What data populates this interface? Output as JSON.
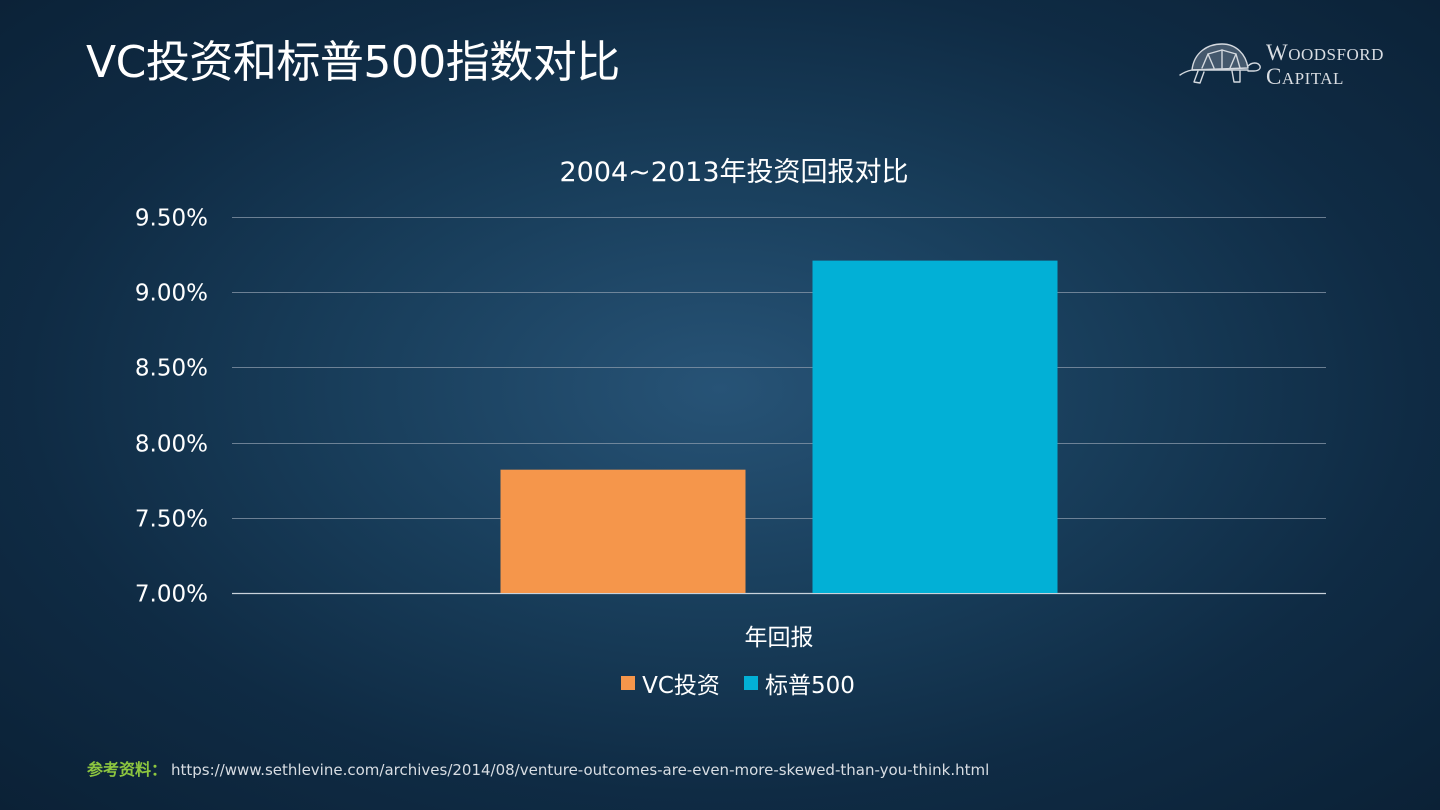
{
  "slide": {
    "title": "VC投资和标普500指数对比",
    "logo": {
      "line1_first": "W",
      "line1_rest": "OODSFORD",
      "line2_first": "C",
      "line2_rest": "APITAL",
      "icon": "tortoise-icon"
    },
    "reference": {
      "label": "参考资料：",
      "url": "https://www.sethlevine.com/archives/2014/08/venture-outcomes-are-even-more-skewed-than-you-think.html"
    }
  },
  "chart_data": {
    "type": "bar",
    "title": "2004~2013年投资回报对比",
    "xlabel": "年回报",
    "ylabel": "",
    "categories": [
      "年回报"
    ],
    "series": [
      {
        "name": "VC投资",
        "values": [
          7.82
        ],
        "color": "#f5964b"
      },
      {
        "name": "标普500",
        "values": [
          9.21
        ],
        "color": "#02b0d6"
      }
    ],
    "ylim": [
      7.0,
      9.5
    ],
    "yticks": [
      "7.00%",
      "7.50%",
      "8.00%",
      "8.50%",
      "9.00%",
      "9.50%"
    ],
    "ytick_values": [
      7.0,
      7.5,
      8.0,
      8.5,
      9.0,
      9.5
    ],
    "unit": "%",
    "grid": true,
    "legend_position": "bottom",
    "gridline_color": "#8a9aab"
  }
}
